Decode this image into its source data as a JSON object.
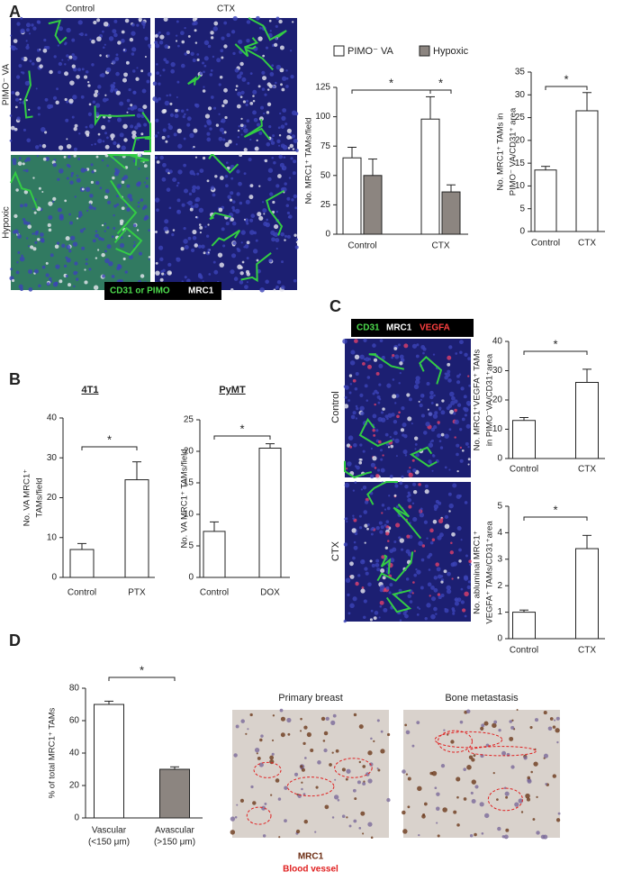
{
  "panel_labels": [
    "A",
    "B",
    "C",
    "D"
  ],
  "panel_a": {
    "columns": [
      "Control",
      "CTX"
    ],
    "rows": [
      "PIMO⁻ VA",
      "Hypoxic"
    ],
    "legend": [
      "CD31 or PIMO",
      "MRC1"
    ]
  },
  "panel_c": {
    "legend": [
      "CD31",
      "MRC1",
      "VEGFA"
    ],
    "rows": [
      "Control",
      "CTX"
    ]
  },
  "panel_d": {
    "images": [
      "Primary breast",
      "Bone metastasis"
    ],
    "legend": [
      "MRC1",
      "Blood vessel"
    ]
  },
  "chart_data": [
    {
      "type": "bar",
      "ylabel": [
        "No. MRC1⁺ TAMs/field"
      ],
      "categories": [
        [
          "Control"
        ],
        [
          "CTX"
        ]
      ],
      "series": [
        {
          "name": "PIMO⁻ VA",
          "color": "#ffffff",
          "values": [
            65,
            98
          ],
          "errors": [
            9,
            19
          ]
        },
        {
          "name": "Hypoxic",
          "color": "#8c8580",
          "values": [
            50,
            36
          ],
          "errors": [
            14,
            6
          ]
        }
      ],
      "ylim": [
        0,
        125
      ],
      "yticks": [
        0,
        25,
        50,
        75,
        100,
        125
      ],
      "annotations": [
        "*",
        "*"
      ]
    },
    {
      "type": "bar",
      "ylabel": [
        "No. MRC1⁺ TAMs in",
        "PIMO⁻ VA/CD31⁺ area"
      ],
      "categories": [
        [
          "Control"
        ],
        [
          "CTX"
        ]
      ],
      "series": [
        {
          "color": "#ffffff",
          "values": [
            13.5,
            26.5
          ],
          "errors": [
            0.8,
            4
          ]
        }
      ],
      "ylim": [
        0,
        35
      ],
      "yticks": [
        0,
        5,
        10,
        15,
        20,
        25,
        30,
        35
      ],
      "annotations": [
        "*"
      ]
    },
    {
      "type": "bar",
      "title": "4T1",
      "ylabel": [
        "No. VA MRC1⁺",
        "TAMs/field"
      ],
      "categories": [
        [
          "Control"
        ],
        [
          "PTX"
        ]
      ],
      "series": [
        {
          "color": "#ffffff",
          "values": [
            7,
            24.5
          ],
          "errors": [
            1.5,
            4.5
          ]
        }
      ],
      "ylim": [
        0,
        40
      ],
      "yticks": [
        0,
        10,
        20,
        30,
        40
      ],
      "annotations": [
        "*"
      ]
    },
    {
      "type": "bar",
      "title": "PyMT",
      "ylabel": [
        "No. VA MRC1⁺ TAMs/field"
      ],
      "categories": [
        [
          "Control"
        ],
        [
          "DOX"
        ]
      ],
      "series": [
        {
          "color": "#ffffff",
          "values": [
            7.3,
            20.5
          ],
          "errors": [
            1.5,
            0.7
          ]
        }
      ],
      "ylim": [
        0,
        25
      ],
      "yticks": [
        0,
        5,
        10,
        15,
        20,
        25
      ],
      "annotations": [
        "*"
      ]
    },
    {
      "type": "bar",
      "ylabel": [
        "No. MRC1⁺VEGFA⁺ TAMs",
        "in PIMO⁻VA/CD31⁺area"
      ],
      "categories": [
        [
          "Control"
        ],
        [
          "CTX"
        ]
      ],
      "series": [
        {
          "color": "#ffffff",
          "values": [
            13,
            26
          ],
          "errors": [
            1,
            4.5
          ]
        }
      ],
      "ylim": [
        0,
        40
      ],
      "yticks": [
        0,
        10,
        20,
        30,
        40
      ],
      "annotations": [
        "*"
      ]
    },
    {
      "type": "bar",
      "ylabel": [
        "No. abluminal MRC1⁺",
        "VEGFA⁺ TAMs/CD31⁺area"
      ],
      "categories": [
        [
          "Control"
        ],
        [
          "CTX"
        ]
      ],
      "series": [
        {
          "color": "#ffffff",
          "values": [
            1,
            3.4
          ],
          "errors": [
            0.08,
            0.5
          ]
        }
      ],
      "ylim": [
        0,
        5
      ],
      "yticks": [
        0,
        1,
        2,
        3,
        4,
        5
      ],
      "annotations": [
        "*"
      ]
    },
    {
      "type": "bar",
      "ylabel": [
        "% of total MRC1⁺ TAMs"
      ],
      "categories": [
        [
          "Vascular",
          "(<150 μm)"
        ],
        [
          "Avascular",
          "(>150 μm)"
        ]
      ],
      "series": [
        {
          "colors": [
            "#ffffff",
            "#8c8580"
          ],
          "values": [
            70,
            30
          ],
          "errors": [
            2,
            1.5
          ]
        }
      ],
      "ylim": [
        0,
        80
      ],
      "yticks": [
        0,
        20,
        40,
        60,
        80
      ],
      "annotations": [
        "*"
      ]
    }
  ]
}
